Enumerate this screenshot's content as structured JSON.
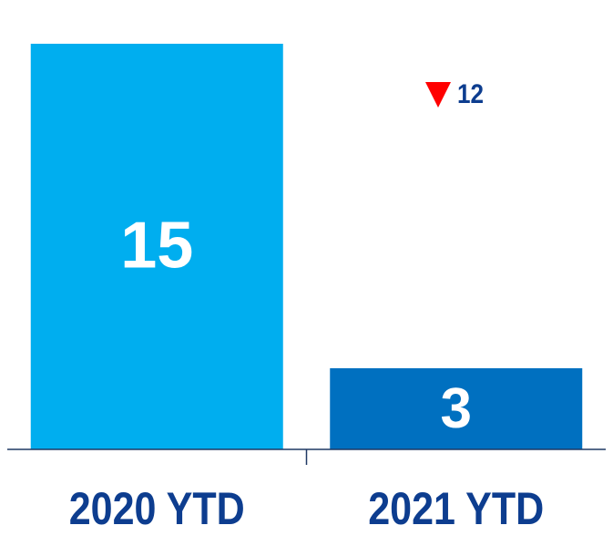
{
  "chart_data": {
    "type": "bar",
    "categories": [
      "2020 YTD",
      "2021 YTD"
    ],
    "values": [
      15,
      3
    ],
    "colors": [
      "#00aeef",
      "#0070c0"
    ],
    "change": 12
  }
}
